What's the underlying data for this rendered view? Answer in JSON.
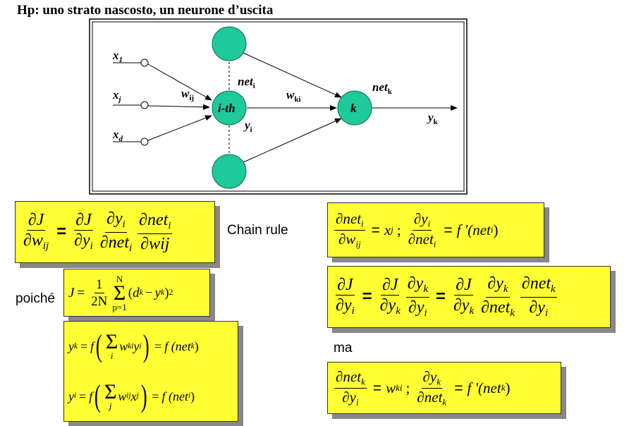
{
  "title": "Hp: uno strato nascosto, un neurone d’uscita",
  "diagram": {
    "inputs": [
      {
        "base": "x",
        "sub": "1"
      },
      {
        "base": "x",
        "sub": "j"
      },
      {
        "base": "x",
        "sub": "d"
      }
    ],
    "weight_in": {
      "base": "w",
      "sub": "ij"
    },
    "hidden_label": "i-th",
    "net_i": {
      "base": "net",
      "sub": "i"
    },
    "y_i": {
      "base": "y",
      "sub": "i"
    },
    "weight_out": {
      "base": "w",
      "sub": "ki"
    },
    "output_label": "k",
    "net_k": {
      "base": "net",
      "sub": "k"
    },
    "y_k": {
      "base": "y",
      "sub": "k"
    },
    "colors": {
      "node": "#1ec99a",
      "node_stroke": "#0b6b50"
    }
  },
  "labels": {
    "chain_rule": "Chain rule",
    "poiche": "poiché",
    "ma": "ma"
  },
  "eq": {
    "partial": "∂",
    "J": "J",
    "w": "w",
    "y": "y",
    "net": "net",
    "wij_plain": "wij",
    "sub_ij": "ij",
    "sub_i": "i",
    "sub_k": "k",
    "sub_ki": "ki",
    "sub_j": "j",
    "eq_sign": "=",
    "x": "x",
    "semicolon": ";",
    "fprime_net_i": "f '(net",
    "fprime_close": ")",
    "one": "1",
    "twoN": "2N",
    "N": "N",
    "p1": "p=1",
    "sigma": "Σ",
    "d": "d",
    "minus": "−",
    "open": "(",
    "close": ")",
    "sq": "2",
    "f": "f",
    "sum_i": "i",
    "sum_j": "j",
    "f_net": "f (net",
    "wkiyi": "w",
    "fprime_net_k": "f '(net"
  }
}
